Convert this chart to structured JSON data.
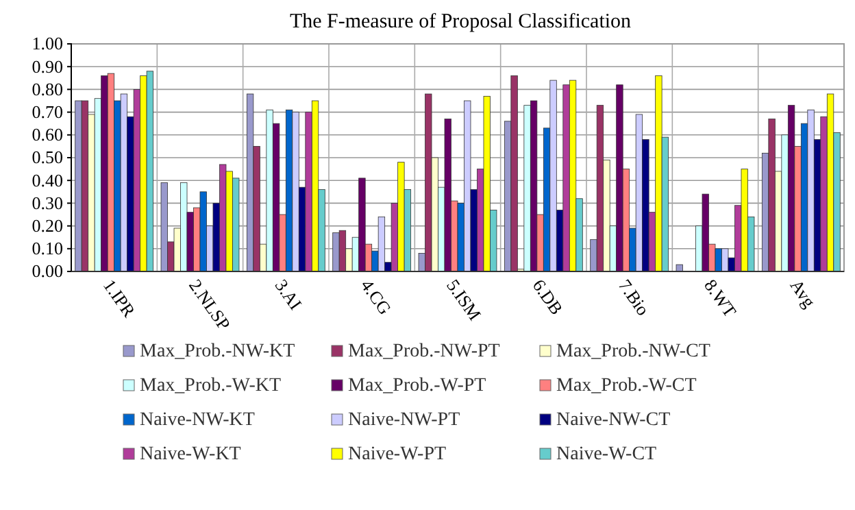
{
  "chart_data": {
    "type": "bar",
    "title": "The F-measure of Proposal Classification",
    "categories": [
      "1.IPR",
      "2.NLSP",
      "3.AI",
      "4.CG",
      "5.ISM",
      "6.DB",
      "7.Bio",
      "8.WT",
      "Avg"
    ],
    "ylim": [
      0,
      1
    ],
    "yticks": [
      {
        "value": 0,
        "label": "0.00"
      },
      {
        "value": 0.1,
        "label": "0.10"
      },
      {
        "value": 0.2,
        "label": "0.20"
      },
      {
        "value": 0.3,
        "label": "0.30"
      },
      {
        "value": 0.4,
        "label": "0.40"
      },
      {
        "value": 0.5,
        "label": "0.50"
      },
      {
        "value": 0.6,
        "label": "0.60"
      },
      {
        "value": 0.7,
        "label": "0.70"
      },
      {
        "value": 0.8,
        "label": "0.80"
      },
      {
        "value": 0.9,
        "label": "0.90"
      },
      {
        "value": 1,
        "label": "1.00"
      }
    ],
    "grid": true,
    "legend": "bottom",
    "series": [
      {
        "name": "Max_Prob.-NW-KT",
        "color": "#9999cc",
        "values": [
          0.75,
          0.39,
          0.78,
          0.17,
          0.08,
          0.66,
          0.14,
          0.03,
          0.52
        ]
      },
      {
        "name": "Max_Prob.-NW-PT",
        "color": "#993366",
        "values": [
          0.75,
          0.13,
          0.55,
          0.18,
          0.78,
          0.86,
          0.73,
          0,
          0.67
        ]
      },
      {
        "name": "Max_Prob.-NW-CT",
        "color": "#ffffcc",
        "values": [
          0.69,
          0.19,
          0.12,
          0.1,
          0.5,
          0.01,
          0.49,
          0,
          0.44
        ]
      },
      {
        "name": "Max_Prob.-W-KT",
        "color": "#ccffff",
        "values": [
          0.76,
          0.39,
          0.71,
          0.15,
          0.37,
          0.73,
          0.2,
          0.2,
          0.6
        ]
      },
      {
        "name": "Max_Prob.-W-PT",
        "color": "#660066",
        "values": [
          0.86,
          0.26,
          0.65,
          0.41,
          0.67,
          0.75,
          0.82,
          0.34,
          0.73
        ]
      },
      {
        "name": "Max_Prob.-W-CT",
        "color": "#ff8080",
        "values": [
          0.87,
          0.28,
          0.25,
          0.12,
          0.31,
          0.25,
          0.45,
          0.12,
          0.55
        ]
      },
      {
        "name": "Naive-NW-KT",
        "color": "#0066cc",
        "values": [
          0.75,
          0.35,
          0.71,
          0.09,
          0.3,
          0.63,
          0.19,
          0.1,
          0.65
        ]
      },
      {
        "name": "Naive-NW-PT",
        "color": "#ccccff",
        "values": [
          0.78,
          0.2,
          0.7,
          0.24,
          0.75,
          0.84,
          0.69,
          0.1,
          0.71
        ]
      },
      {
        "name": "Naive-NW-CT",
        "color": "#000080",
        "values": [
          0.68,
          0.3,
          0.37,
          0.04,
          0.36,
          0.27,
          0.58,
          0.06,
          0.58
        ]
      },
      {
        "name": "Naive-W-KT",
        "color": "#b03c9a",
        "values": [
          0.8,
          0.47,
          0.7,
          0.3,
          0.45,
          0.82,
          0.26,
          0.29,
          0.68
        ]
      },
      {
        "name": "Naive-W-PT",
        "color": "#ffff00",
        "values": [
          0.86,
          0.44,
          0.75,
          0.48,
          0.77,
          0.84,
          0.86,
          0.45,
          0.78
        ]
      },
      {
        "name": "Naive-W-CT",
        "color": "#66cccc",
        "values": [
          0.88,
          0.41,
          0.36,
          0.36,
          0.27,
          0.32,
          0.59,
          0.24,
          0.61
        ]
      }
    ]
  }
}
